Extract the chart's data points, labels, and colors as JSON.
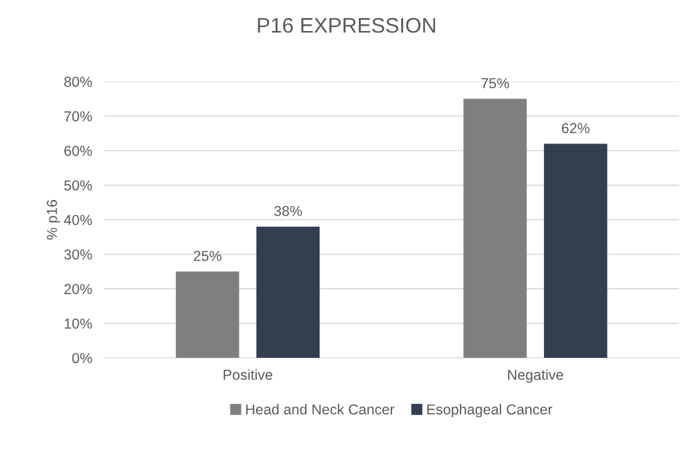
{
  "chart_data": {
    "type": "bar",
    "title": "P16 EXPRESSION",
    "ylabel": "% p16",
    "categories": [
      "Positive",
      "Negative"
    ],
    "series": [
      {
        "name": "Head and Neck Cancer",
        "color": "#7f7f7f",
        "values": [
          25,
          75
        ],
        "value_labels": [
          "25%",
          "75%"
        ]
      },
      {
        "name": "Esophageal Cancer",
        "color": "#333f50",
        "values": [
          38,
          62
        ],
        "value_labels": [
          "38%",
          "62%"
        ]
      }
    ],
    "ylim": [
      0,
      80
    ],
    "yticks": [
      {
        "value": 0,
        "label": "0%"
      },
      {
        "value": 10,
        "label": "10%"
      },
      {
        "value": 20,
        "label": "20%"
      },
      {
        "value": 30,
        "label": "30%"
      },
      {
        "value": 40,
        "label": "40%"
      },
      {
        "value": 50,
        "label": "50%"
      },
      {
        "value": 60,
        "label": "60%"
      },
      {
        "value": 70,
        "label": "70%"
      },
      {
        "value": 80,
        "label": "80%"
      }
    ],
    "grid": "y",
    "legend": "bottom"
  }
}
